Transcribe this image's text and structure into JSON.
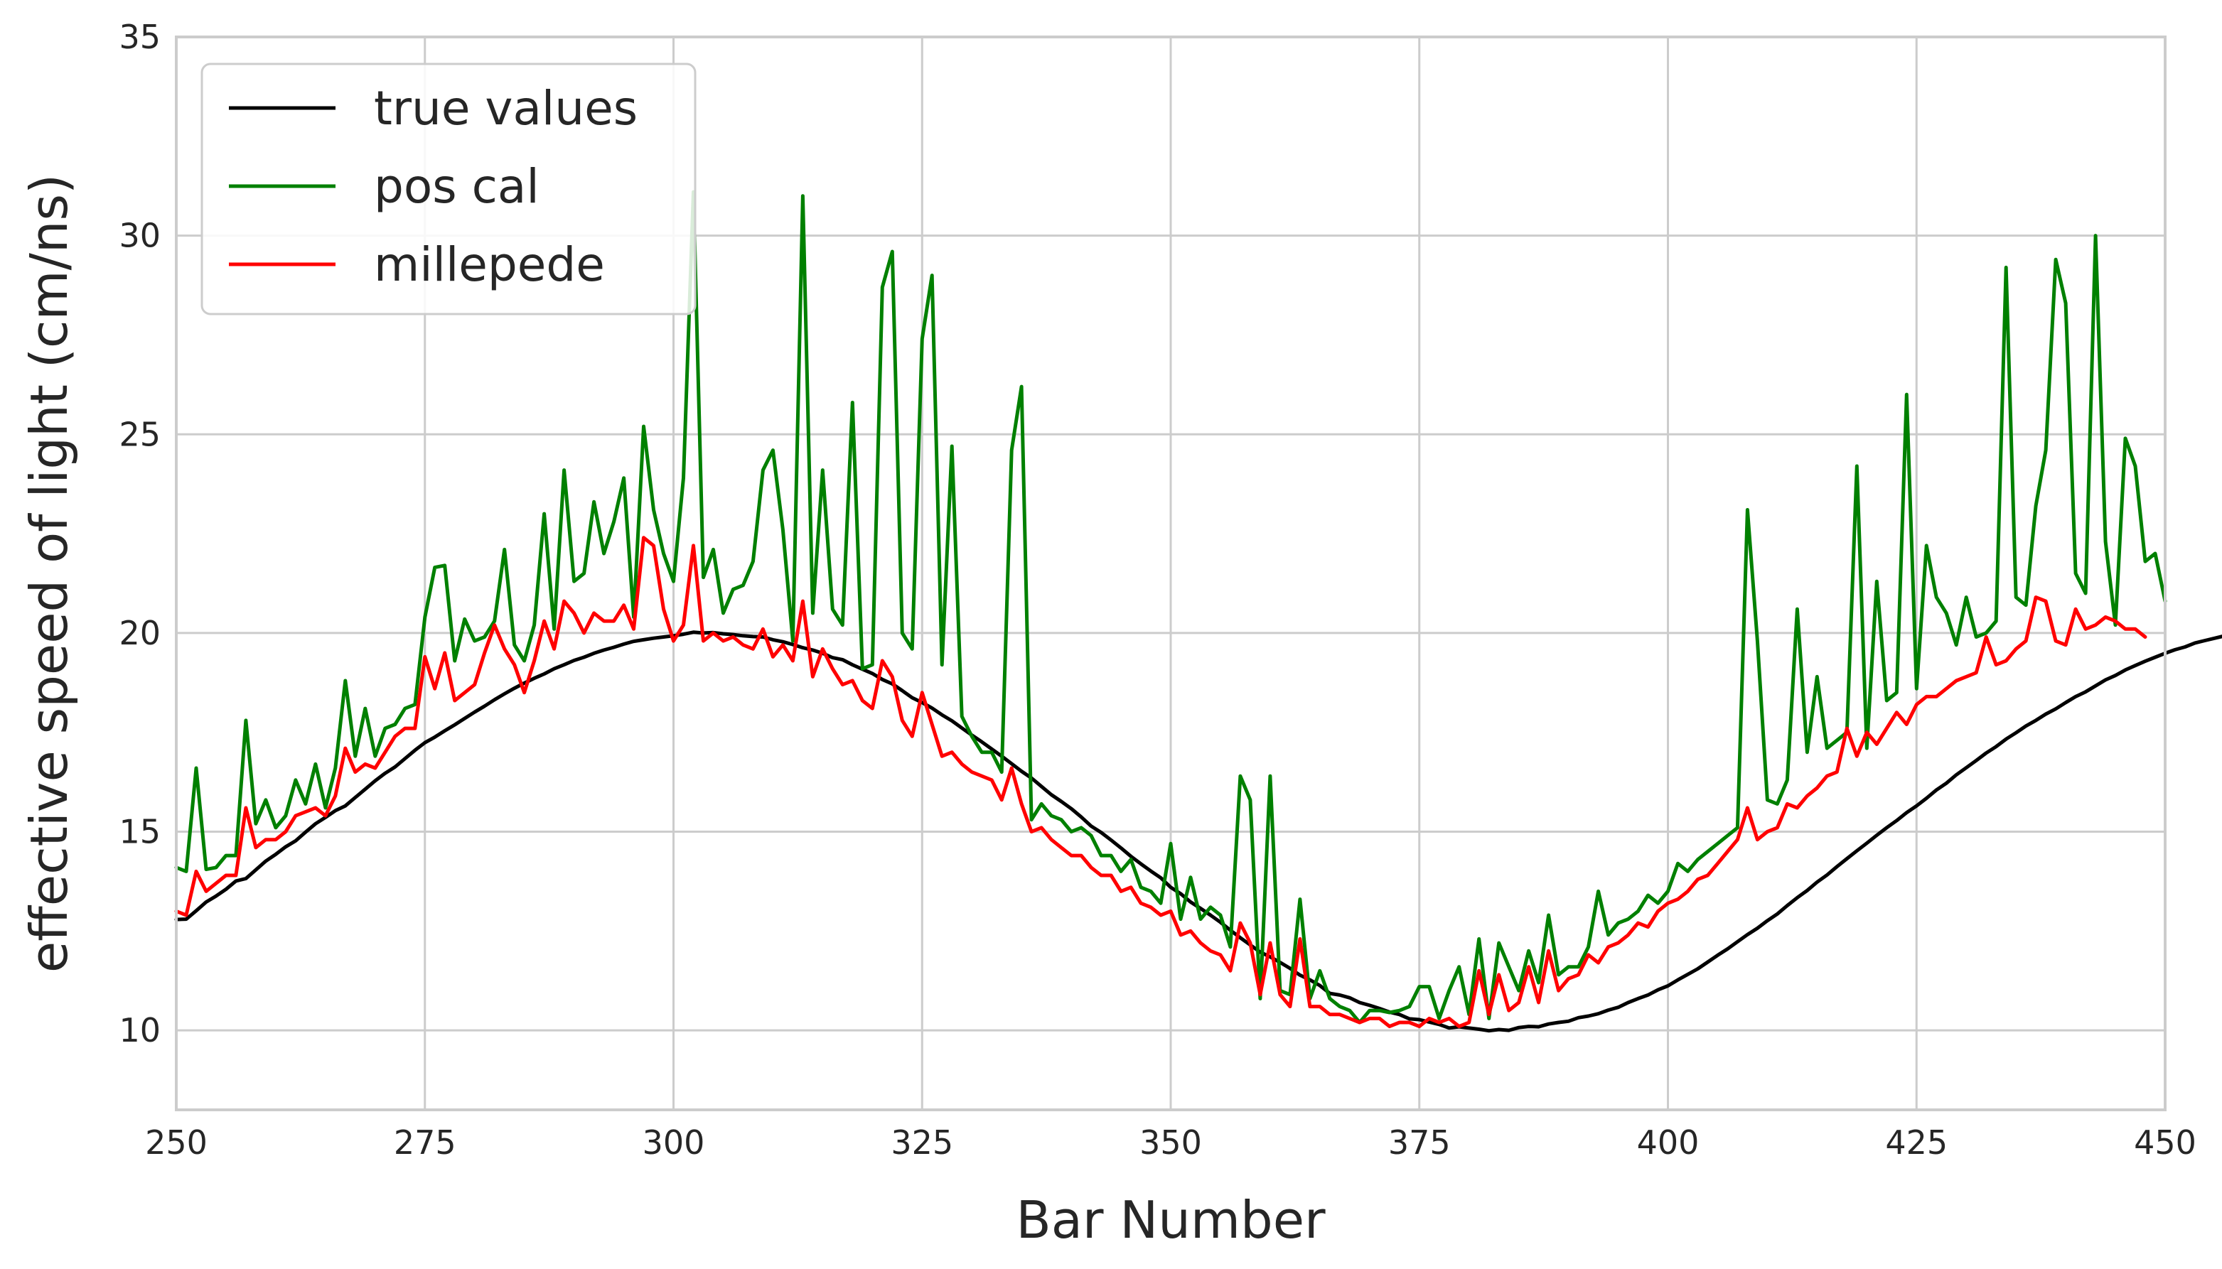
{
  "chart_data": {
    "type": "line",
    "title": "",
    "xlabel": "Bar Number",
    "ylabel": "effective speed of light (cm/ns)",
    "xlim": [
      250,
      450
    ],
    "ylim": [
      8,
      35
    ],
    "xticks": [
      250,
      275,
      300,
      325,
      350,
      375,
      400,
      425,
      450
    ],
    "yticks": [
      10,
      15,
      20,
      25,
      30,
      35
    ],
    "grid": true,
    "legend_position": "upper-left",
    "x_start": 250,
    "x_step": 1,
    "series": [
      {
        "name": "true values",
        "color": "#000000",
        "values": [
          12.79,
          12.8,
          13.01,
          13.23,
          13.38,
          13.55,
          13.76,
          13.82,
          14.04,
          14.26,
          14.43,
          14.62,
          14.77,
          14.99,
          15.2,
          15.36,
          15.53,
          15.65,
          15.86,
          16.07,
          16.28,
          16.47,
          16.63,
          16.84,
          17.05,
          17.24,
          17.38,
          17.54,
          17.69,
          17.85,
          18.01,
          18.16,
          18.32,
          18.47,
          18.61,
          18.74,
          18.86,
          18.97,
          19.1,
          19.2,
          19.31,
          19.39,
          19.49,
          19.57,
          19.64,
          19.72,
          19.79,
          19.83,
          19.87,
          19.9,
          19.93,
          19.97,
          20.02,
          20.0,
          20.01,
          19.98,
          19.96,
          19.93,
          19.91,
          19.9,
          19.83,
          19.78,
          19.71,
          19.63,
          19.57,
          19.49,
          19.38,
          19.33,
          19.2,
          19.09,
          18.98,
          18.83,
          18.72,
          18.55,
          18.37,
          18.25,
          18.11,
          17.94,
          17.79,
          17.61,
          17.43,
          17.26,
          17.08,
          16.9,
          16.71,
          16.52,
          16.35,
          16.14,
          15.93,
          15.76,
          15.58,
          15.37,
          15.14,
          14.98,
          14.79,
          14.59,
          14.38,
          14.19,
          14.01,
          13.84,
          13.6,
          13.44,
          13.23,
          13.07,
          12.9,
          12.72,
          12.52,
          12.33,
          12.15,
          11.97,
          11.85,
          11.71,
          11.56,
          11.39,
          11.27,
          11.13,
          10.93,
          10.89,
          10.82,
          10.7,
          10.63,
          10.55,
          10.46,
          10.4,
          10.29,
          10.27,
          10.21,
          10.15,
          10.06,
          10.09,
          10.06,
          10.03,
          9.99,
          10.02,
          10.0,
          10.07,
          10.1,
          10.09,
          10.16,
          10.2,
          10.23,
          10.32,
          10.36,
          10.42,
          10.51,
          10.58,
          10.7,
          10.8,
          10.89,
          11.02,
          11.12,
          11.27,
          11.41,
          11.55,
          11.72,
          11.89,
          12.05,
          12.23,
          12.41,
          12.57,
          12.76,
          12.93,
          13.14,
          13.34,
          13.52,
          13.73,
          13.91,
          14.12,
          14.32,
          14.52,
          14.71,
          14.91,
          15.1,
          15.28,
          15.48,
          15.65,
          15.84,
          16.05,
          16.22,
          16.43,
          16.61,
          16.79,
          16.98,
          17.14,
          17.33,
          17.49,
          17.66,
          17.8,
          17.96,
          18.09,
          18.25,
          18.4,
          18.52,
          18.67,
          18.82,
          18.93,
          19.07,
          19.18,
          19.29,
          19.39,
          19.49,
          19.58,
          19.65,
          19.75,
          19.81,
          19.87,
          19.93,
          19.97,
          20.0
        ]
      },
      {
        "name": "pos cal",
        "color": "#008000",
        "values": [
          14.1,
          14.0,
          16.6,
          14.05,
          14.1,
          14.4,
          14.4,
          17.8,
          15.2,
          15.8,
          15.1,
          15.4,
          16.3,
          15.7,
          16.7,
          15.6,
          16.6,
          18.8,
          16.9,
          18.1,
          16.9,
          17.6,
          17.7,
          18.1,
          18.2,
          20.4,
          21.65,
          21.7,
          19.3,
          20.35,
          19.8,
          19.9,
          20.3,
          22.1,
          19.7,
          19.3,
          20.2,
          23.0,
          20.1,
          24.1,
          21.3,
          21.5,
          23.3,
          22.0,
          22.8,
          23.9,
          20.4,
          25.2,
          23.1,
          22.0,
          21.3,
          23.9,
          31.1,
          21.4,
          22.1,
          20.5,
          21.1,
          21.2,
          21.8,
          24.1,
          24.6,
          22.6,
          19.8,
          31.0,
          20.5,
          24.1,
          20.6,
          20.2,
          25.8,
          19.1,
          19.2,
          28.7,
          29.6,
          20.0,
          19.6,
          27.4,
          29.0,
          19.2,
          24.7,
          17.9,
          17.4,
          17.0,
          17.0,
          16.5,
          24.6,
          26.2,
          15.3,
          15.7,
          15.4,
          15.3,
          15.0,
          15.1,
          14.9,
          14.4,
          14.4,
          14.0,
          14.3,
          13.6,
          13.5,
          13.2,
          14.7,
          12.8,
          13.85,
          12.8,
          13.1,
          12.9,
          12.1,
          16.4,
          15.8,
          10.8,
          16.4,
          11.0,
          10.9,
          13.3,
          10.8,
          11.5,
          10.8,
          10.6,
          10.5,
          10.2,
          10.5,
          10.5,
          10.45,
          10.5,
          10.6,
          11.1,
          11.1,
          10.3,
          11.0,
          11.6,
          10.4,
          12.3,
          10.3,
          12.2,
          11.6,
          11.0,
          12.0,
          11.2,
          12.9,
          11.4,
          11.6,
          11.6,
          12.1,
          13.5,
          12.4,
          12.7,
          12.8,
          13.0,
          13.4,
          13.2,
          13.5,
          14.2,
          14.0,
          14.3,
          14.5,
          14.7,
          14.9,
          15.1,
          23.1,
          19.8,
          15.8,
          15.7,
          16.3,
          20.6,
          17.0,
          18.9,
          17.1,
          17.3,
          17.5,
          24.2,
          17.1,
          21.3,
          18.3,
          18.5,
          26.0,
          18.6,
          22.2,
          20.9,
          20.5,
          19.7,
          20.9,
          19.9,
          20.0,
          20.3,
          29.2,
          20.9,
          20.7,
          23.2,
          24.6,
          29.4,
          28.3,
          21.5,
          21.0,
          30.0,
          22.3,
          20.2,
          24.9,
          24.2,
          21.8,
          22.0,
          20.8
        ]
      },
      {
        "name": "millepede",
        "color": "#ff0000",
        "values": [
          13.0,
          12.9,
          14.0,
          13.5,
          13.7,
          13.9,
          13.9,
          15.6,
          14.6,
          14.8,
          14.8,
          15.0,
          15.4,
          15.5,
          15.6,
          15.4,
          15.9,
          17.1,
          16.5,
          16.7,
          16.6,
          17.0,
          17.4,
          17.6,
          17.6,
          19.4,
          18.6,
          19.5,
          18.3,
          18.5,
          18.7,
          19.5,
          20.2,
          19.6,
          19.2,
          18.5,
          19.3,
          20.3,
          19.6,
          20.8,
          20.5,
          20.0,
          20.5,
          20.3,
          20.3,
          20.7,
          20.1,
          22.4,
          22.2,
          20.6,
          19.8,
          20.2,
          22.2,
          19.8,
          20.0,
          19.8,
          19.9,
          19.7,
          19.6,
          20.1,
          19.4,
          19.7,
          19.3,
          20.8,
          18.9,
          19.6,
          19.1,
          18.7,
          18.8,
          18.3,
          18.1,
          19.3,
          18.9,
          17.8,
          17.4,
          18.5,
          17.7,
          16.9,
          17.0,
          16.7,
          16.5,
          16.4,
          16.3,
          15.8,
          16.6,
          15.7,
          15.0,
          15.1,
          14.8,
          14.6,
          14.4,
          14.4,
          14.1,
          13.9,
          13.9,
          13.5,
          13.6,
          13.2,
          13.1,
          12.9,
          13.0,
          12.4,
          12.5,
          12.2,
          12.0,
          11.9,
          11.5,
          12.7,
          12.2,
          10.9,
          12.2,
          10.9,
          10.6,
          12.3,
          10.6,
          10.6,
          10.4,
          10.4,
          10.3,
          10.2,
          10.3,
          10.3,
          10.1,
          10.2,
          10.2,
          10.1,
          10.3,
          10.2,
          10.3,
          10.1,
          10.2,
          11.5,
          10.4,
          11.4,
          10.5,
          10.7,
          11.6,
          10.7,
          12.0,
          11.0,
          11.3,
          11.4,
          11.9,
          11.7,
          12.1,
          12.2,
          12.4,
          12.7,
          12.6,
          13.0,
          13.2,
          13.3,
          13.5,
          13.8,
          13.9,
          14.2,
          14.5,
          14.8,
          15.6,
          14.8,
          15.0,
          15.1,
          15.7,
          15.6,
          15.9,
          16.1,
          16.4,
          16.5,
          17.6,
          16.9,
          17.5,
          17.2,
          17.6,
          18.0,
          17.7,
          18.2,
          18.4,
          18.4,
          18.6,
          18.8,
          18.9,
          19.0,
          19.9,
          19.2,
          19.3,
          19.6,
          19.8,
          20.9,
          20.8,
          19.8,
          19.7,
          20.6,
          20.1,
          20.2,
          20.4,
          20.3,
          20.1,
          20.1,
          19.9
        ]
      }
    ]
  }
}
